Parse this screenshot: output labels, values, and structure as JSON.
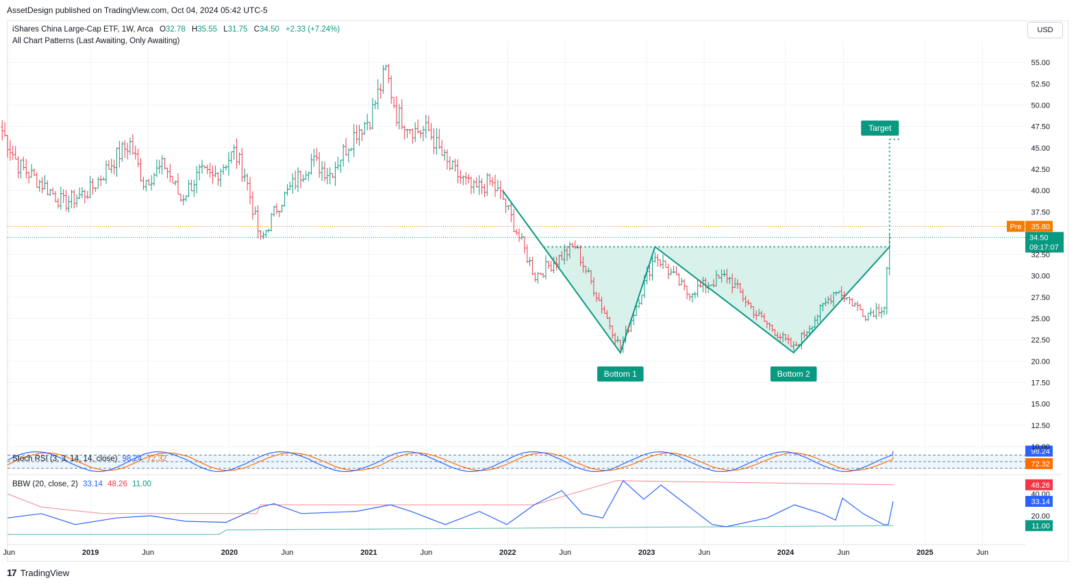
{
  "header": {
    "publisher_text": "AssetDesign published on TradingView.com, Oct 04, 2024 05:42 UTC-5"
  },
  "legend": {
    "symbol_line": "iShares China Large-Cap ETF, 1W, Arca",
    "open_key": "O",
    "open_val": "32.78",
    "high_key": "H",
    "high_val": "35.55",
    "low_key": "L",
    "low_val": "31.75",
    "close_key": "C",
    "close_val": "34.50",
    "change": "+2.33 (+7.24%)",
    "indicator_line": "All Chart Patterns (Last Awaiting, Only Awaiting)"
  },
  "currency_button": "USD",
  "price_axis": {
    "labels": [
      "55.00",
      "52.50",
      "50.00",
      "47.50",
      "45.00",
      "42.50",
      "40.00",
      "37.50",
      "32.50",
      "30.00",
      "27.50",
      "25.00",
      "22.50",
      "20.00",
      "17.50",
      "15.00",
      "12.50",
      "10.00"
    ],
    "pre_label": "Pre",
    "pre_value": "35.80",
    "last_price": "34.50",
    "countdown": "09:17:07"
  },
  "time_axis": {
    "labels": [
      "Jun",
      "2019",
      "Jun",
      "2020",
      "Jun",
      "2021",
      "Jun",
      "2022",
      "Jun",
      "2023",
      "Jun",
      "2024",
      "Jun",
      "2025",
      "Jun"
    ]
  },
  "pattern_labels": {
    "bottom1": "Bottom 1",
    "bottom2": "Bottom 2",
    "target": "Target"
  },
  "stoch_rsi": {
    "name": "Stoch RSI (3, 3, 14, 14, close)",
    "k": "98.24",
    "d": "72.32"
  },
  "bbw": {
    "name": "BBW (20, close, 2)",
    "v1": "33.14",
    "v2": "48.26",
    "v3": "11.00",
    "axis_labels": [
      "40.00",
      "20.00"
    ]
  },
  "footer": {
    "brand": "TradingView",
    "logo": "17"
  },
  "colors": {
    "up": "#089981",
    "down": "#f23645",
    "pattern": "#089981",
    "pattern_fill": "#d1efe8",
    "pre": "#f57c00",
    "stoch_k": "#2962ff",
    "stoch_d": "#ff6d00",
    "bbw_line": "#2962ff",
    "bbw_upper": "#f23645",
    "bbw_lower": "#089981"
  },
  "chart_data": {
    "type": "candlestick",
    "symbol": "iShares China Large-Cap ETF",
    "interval": "1W",
    "exchange": "Arca",
    "ylim": [
      10,
      57.5
    ],
    "last": {
      "open": 32.78,
      "high": 35.55,
      "low": 31.75,
      "close": 34.5,
      "change": 2.33,
      "change_pct": 7.24
    },
    "pre_market": 35.8,
    "pattern": {
      "type": "double bottom",
      "points": [
        {
          "date": "2021-12-20",
          "price": 39.9
        },
        {
          "date": "2022-10-24",
          "price": 21.0
        },
        {
          "date": "2023-01-23",
          "price": 33.4
        },
        {
          "date": "2024-01-22",
          "price": 21.0
        },
        {
          "date": "2024-09-30",
          "price": 33.4
        }
      ],
      "neckline": 33.4,
      "target": 46.0
    },
    "path_closes": [
      {
        "date": "2018-05-14",
        "close": 47.0
      },
      {
        "date": "2018-06-25",
        "close": 43.0
      },
      {
        "date": "2018-09-03",
        "close": 40.5
      },
      {
        "date": "2018-10-22",
        "close": 38.5
      },
      {
        "date": "2018-12-31",
        "close": 40.0
      },
      {
        "date": "2019-03-11",
        "close": 44.0
      },
      {
        "date": "2019-04-15",
        "close": 45.5
      },
      {
        "date": "2019-05-20",
        "close": 41.0
      },
      {
        "date": "2019-07-15",
        "close": 43.0
      },
      {
        "date": "2019-08-26",
        "close": 39.0
      },
      {
        "date": "2019-10-14",
        "close": 42.0
      },
      {
        "date": "2019-11-18",
        "close": 41.5
      },
      {
        "date": "2020-01-13",
        "close": 44.5
      },
      {
        "date": "2020-02-10",
        "close": 42.0
      },
      {
        "date": "2020-03-23",
        "close": 34.0
      },
      {
        "date": "2020-05-04",
        "close": 38.0
      },
      {
        "date": "2020-06-29",
        "close": 41.5
      },
      {
        "date": "2020-08-03",
        "close": 43.5
      },
      {
        "date": "2020-09-21",
        "close": 42.0
      },
      {
        "date": "2020-11-30",
        "close": 47.0
      },
      {
        "date": "2021-01-04",
        "close": 48.5
      },
      {
        "date": "2021-02-15",
        "close": 54.0
      },
      {
        "date": "2021-03-15",
        "close": 49.0
      },
      {
        "date": "2021-05-03",
        "close": 47.0
      },
      {
        "date": "2021-06-07",
        "close": 47.0
      },
      {
        "date": "2021-07-26",
        "close": 43.0
      },
      {
        "date": "2021-10-04",
        "close": 40.0
      },
      {
        "date": "2021-11-15",
        "close": 41.0
      },
      {
        "date": "2021-12-20",
        "close": 39.0
      },
      {
        "date": "2022-03-14",
        "close": 30.0
      },
      {
        "date": "2022-06-27",
        "close": 33.5
      },
      {
        "date": "2022-10-24",
        "close": 21.5
      },
      {
        "date": "2023-01-23",
        "close": 32.5
      },
      {
        "date": "2023-04-17",
        "close": 28.0
      },
      {
        "date": "2023-07-31",
        "close": 30.0
      },
      {
        "date": "2023-10-16",
        "close": 25.5
      },
      {
        "date": "2024-01-22",
        "close": 21.5
      },
      {
        "date": "2024-05-13",
        "close": 28.5
      },
      {
        "date": "2024-07-29",
        "close": 25.5
      },
      {
        "date": "2024-09-16",
        "close": 26.5
      },
      {
        "date": "2024-09-23",
        "close": 31.0
      },
      {
        "date": "2024-09-30",
        "close": 34.5
      }
    ],
    "stoch_rsi": {
      "k": 98.24,
      "d": 72.32
    },
    "bbw": {
      "value": 33.14,
      "highest_expansion": 48.26,
      "lowest_contraction": 11.0
    }
  }
}
